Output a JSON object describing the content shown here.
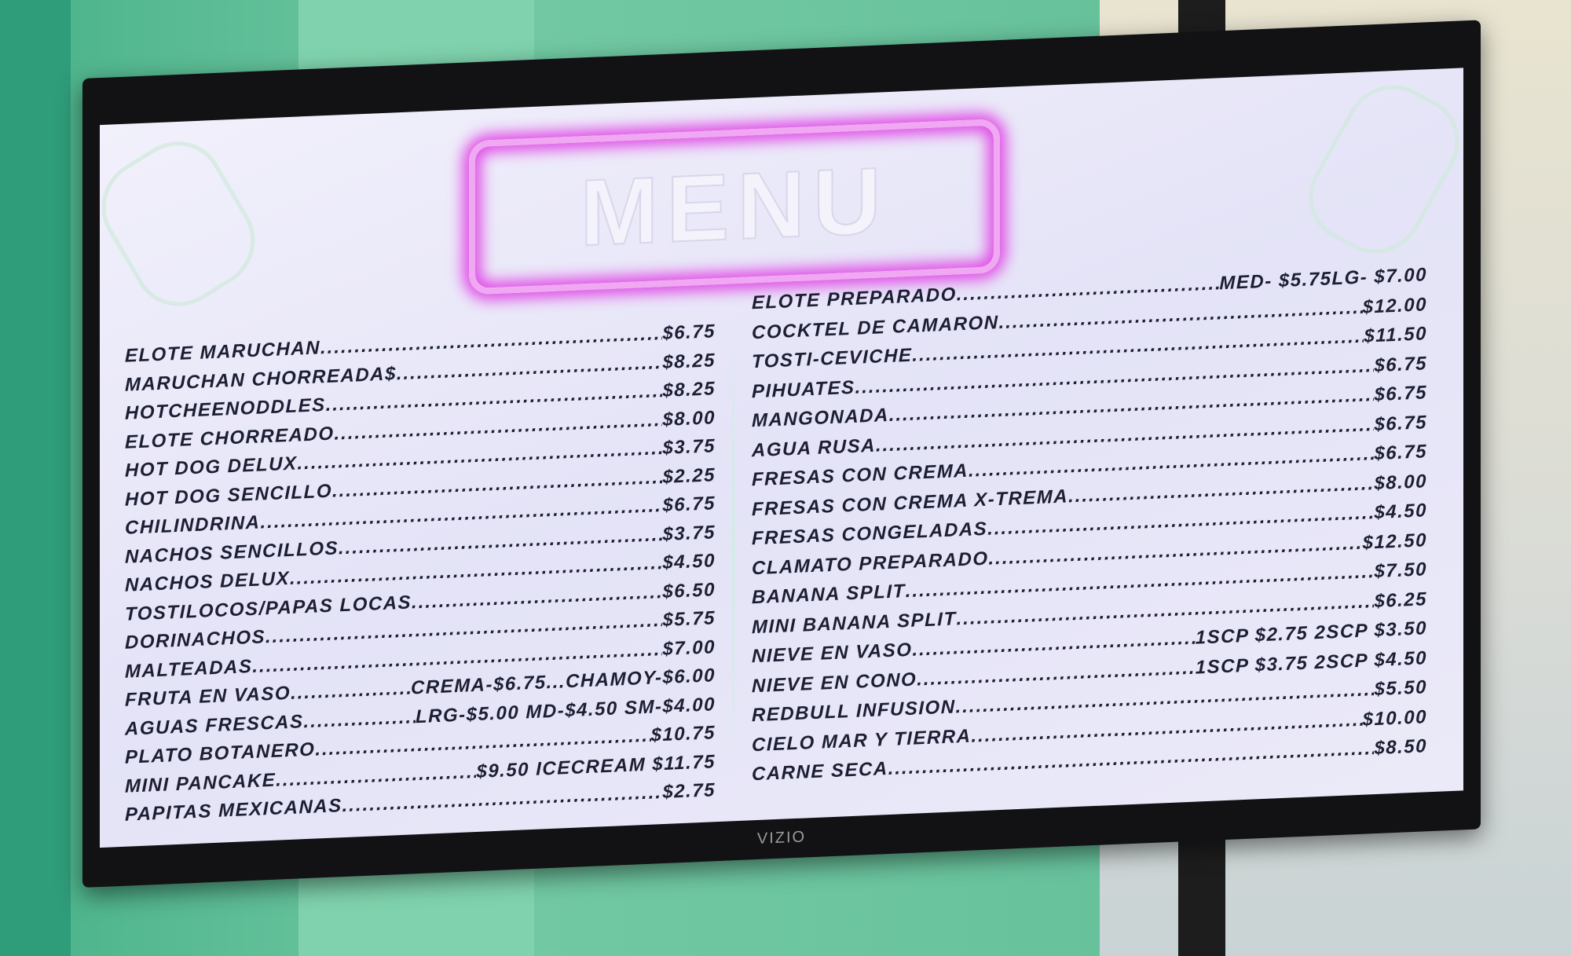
{
  "tv": {
    "brand": "VIZIO"
  },
  "menu": {
    "title": "MENU",
    "left_items": [
      {
        "name": "ELOTE MARUCHAN",
        "price": "$6.75"
      },
      {
        "name": "MARUCHAN CHORREADA$",
        "price": "$8.25"
      },
      {
        "name": "HOTCHEENODDLES",
        "price": "$8.25"
      },
      {
        "name": "ELOTE CHORREADO",
        "price": "$8.00"
      },
      {
        "name": "HOT DOG DELUX",
        "price": "$3.75"
      },
      {
        "name": "HOT DOG SENCILLO",
        "price": "$2.25"
      },
      {
        "name": "CHILINDRINA",
        "price": "$6.75"
      },
      {
        "name": "NACHOS SENCILLOS",
        "price": "$3.75"
      },
      {
        "name": "NACHOS DELUX",
        "price": "$4.50"
      },
      {
        "name": "TOSTILOCOS/PAPAS LOCAS",
        "price": "$6.50"
      },
      {
        "name": "DORINACHOS",
        "price": "$5.75"
      },
      {
        "name": "MALTEADAS",
        "price": "$7.00"
      },
      {
        "name": "FRUTA EN VASO",
        "price": "CREMA-$6.75...CHAMOY-$6.00"
      },
      {
        "name": "AGUAS FRESCAS",
        "price": "LRG-$5.00 MD-$4.50 SM-$4.00"
      },
      {
        "name": "PLATO BOTANERO",
        "price": "$10.75"
      },
      {
        "name": "MINI PANCAKE",
        "price": "$9.50 ICECREAM $11.75"
      },
      {
        "name": "PAPITAS MEXICANAS",
        "price": "$2.75"
      }
    ],
    "right_items": [
      {
        "name": "ELOTE PREPARADO",
        "price": "MED- $5.75LG- $7.00"
      },
      {
        "name": "COCKTEL DE CAMARON",
        "price": "$12.00"
      },
      {
        "name": "TOSTI-CEVICHE",
        "price": "$11.50"
      },
      {
        "name": "PIHUATES",
        "price": "$6.75"
      },
      {
        "name": "MANGONADA",
        "price": "$6.75"
      },
      {
        "name": "AGUA RUSA",
        "price": "$6.75"
      },
      {
        "name": "FRESAS CON CREMA",
        "price": "$6.75"
      },
      {
        "name": "FRESAS CON CREMA X-TREMA",
        "price": "$8.00"
      },
      {
        "name": "FRESAS CONGELADAS",
        "price": "$4.50"
      },
      {
        "name": "CLAMATO PREPARADO",
        "price": "$12.50"
      },
      {
        "name": "BANANA SPLIT",
        "price": "$7.50"
      },
      {
        "name": "MINI BANANA SPLIT",
        "price": "$6.25"
      },
      {
        "name": "NIEVE EN VASO",
        "price": "1SCP $2.75 2SCP $3.50"
      },
      {
        "name": "NIEVE EN CONO",
        "price": "1SCP $3.75 2SCP $4.50"
      },
      {
        "name": "REDBULL INFUSION",
        "price": "$5.50"
      },
      {
        "name": "CIELO MAR Y TIERRA",
        "price": "$10.00"
      },
      {
        "name": "CARNE SECA",
        "price": "$8.50"
      }
    ]
  },
  "colors": {
    "neon": "#e04fe6",
    "text": "#1c1e33",
    "wall": "#6cc49f"
  }
}
